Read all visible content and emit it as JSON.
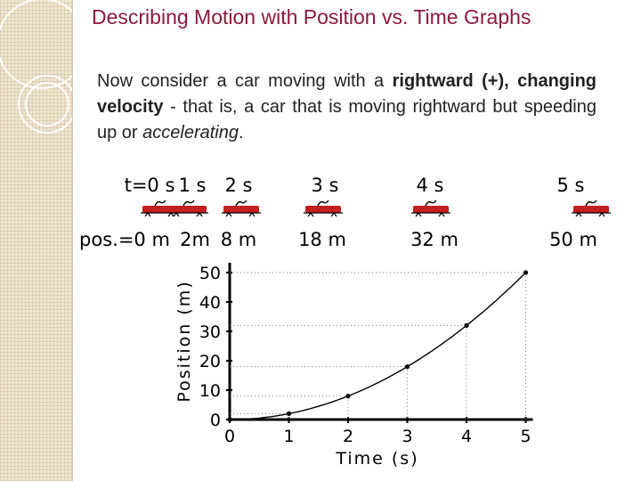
{
  "slide": {
    "title": "Describing Motion with Position vs. Time Graphs",
    "paragraph": {
      "part1": "Now consider a car moving with a ",
      "bold1": "rightward (+), changing velocity",
      "part2": " - that is, a car that is moving rightward but speeding up or ",
      "italic1": "accelerating",
      "part3": "."
    }
  },
  "motion_diagram": {
    "time_labels": [
      "t=0 s",
      "1 s",
      "2 s",
      "3 s",
      "4 s",
      "5 s"
    ],
    "position_labels": [
      "pos.=0 m",
      "2m",
      "8 m",
      "18 m",
      "32 m",
      "50 m"
    ],
    "car_color": "#c41e1e",
    "car_icon": "car-icon"
  },
  "chart_data": {
    "type": "scatter",
    "x": [
      0,
      1,
      2,
      3,
      4,
      5
    ],
    "y": [
      0,
      2,
      8,
      18,
      32,
      50
    ],
    "trend": "curve",
    "xlabel": "Time (s)",
    "ylabel": "Position (m)",
    "xticks": [
      "0",
      "1",
      "2",
      "3",
      "4",
      "5"
    ],
    "yticks": [
      "0",
      "10",
      "20",
      "30",
      "40",
      "50"
    ],
    "xlim": [
      0,
      5
    ],
    "ylim": [
      0,
      50
    ]
  }
}
